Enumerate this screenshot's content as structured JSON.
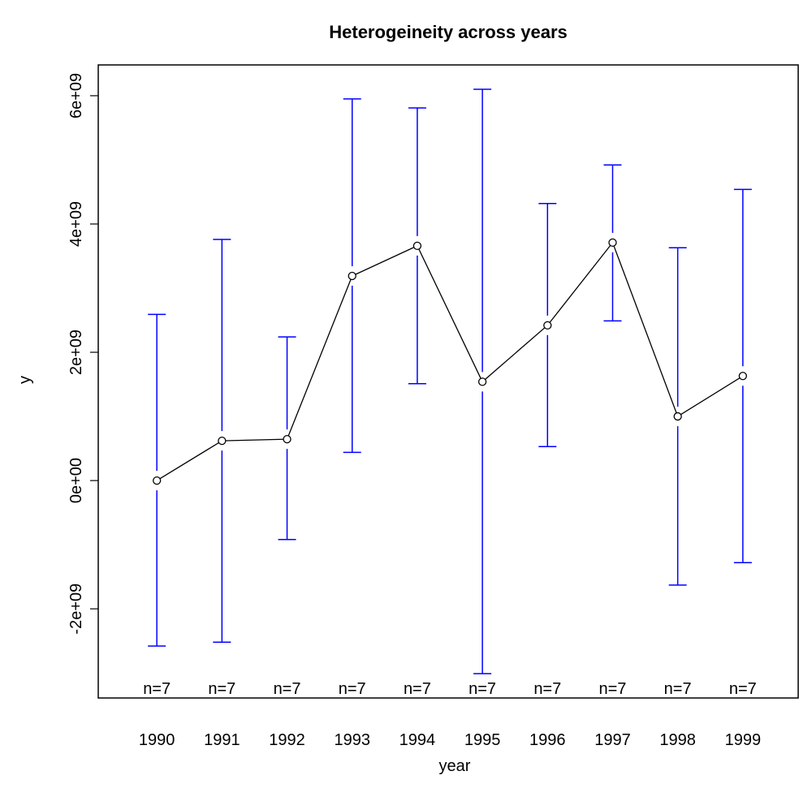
{
  "chart_data": {
    "type": "line",
    "title": "Heterogeineity across years",
    "x_label": "year",
    "y_label": "y",
    "x": [
      1990,
      1991,
      1992,
      1993,
      1994,
      1995,
      1996,
      1997,
      1998,
      1999
    ],
    "series": [
      {
        "color": "#000000",
        "error_color": "#0000ff",
        "values": [
          0,
          620000000,
          645000000,
          3190000000,
          3660000000,
          1540000000,
          2420000000,
          3710000000,
          1000000000,
          1630000000
        ],
        "ci_upper": [
          2590000000,
          3760000000,
          2240000000,
          5950000000,
          5810000000,
          6100000000,
          4320000000,
          4920000000,
          3630000000,
          4540000000
        ],
        "ci_lower": [
          -2580000000,
          -2520000000,
          -920000000,
          440000000,
          1510000000,
          -3010000000,
          530000000,
          2490000000,
          -1630000000,
          -1280000000
        ]
      }
    ],
    "n_labels": [
      "n=7",
      "n=7",
      "n=7",
      "n=7",
      "n=7",
      "n=7",
      "n=7",
      "n=7",
      "n=7",
      "n=7"
    ],
    "xlim": [
      1989.1,
      1999.85
    ],
    "xticks": [
      1990,
      1991,
      1992,
      1993,
      1994,
      1995,
      1996,
      1997,
      1998,
      1999
    ],
    "ylim": [
      -3390000000,
      6480000000
    ],
    "yticks": [
      {
        "value": -2000000000,
        "label": "-2e+09"
      },
      {
        "value": 0,
        "label": "0e+00"
      },
      {
        "value": 2000000000,
        "label": "2e+09"
      },
      {
        "value": 4000000000,
        "label": "4e+09"
      },
      {
        "value": 6000000000,
        "label": "6e+09"
      }
    ]
  }
}
